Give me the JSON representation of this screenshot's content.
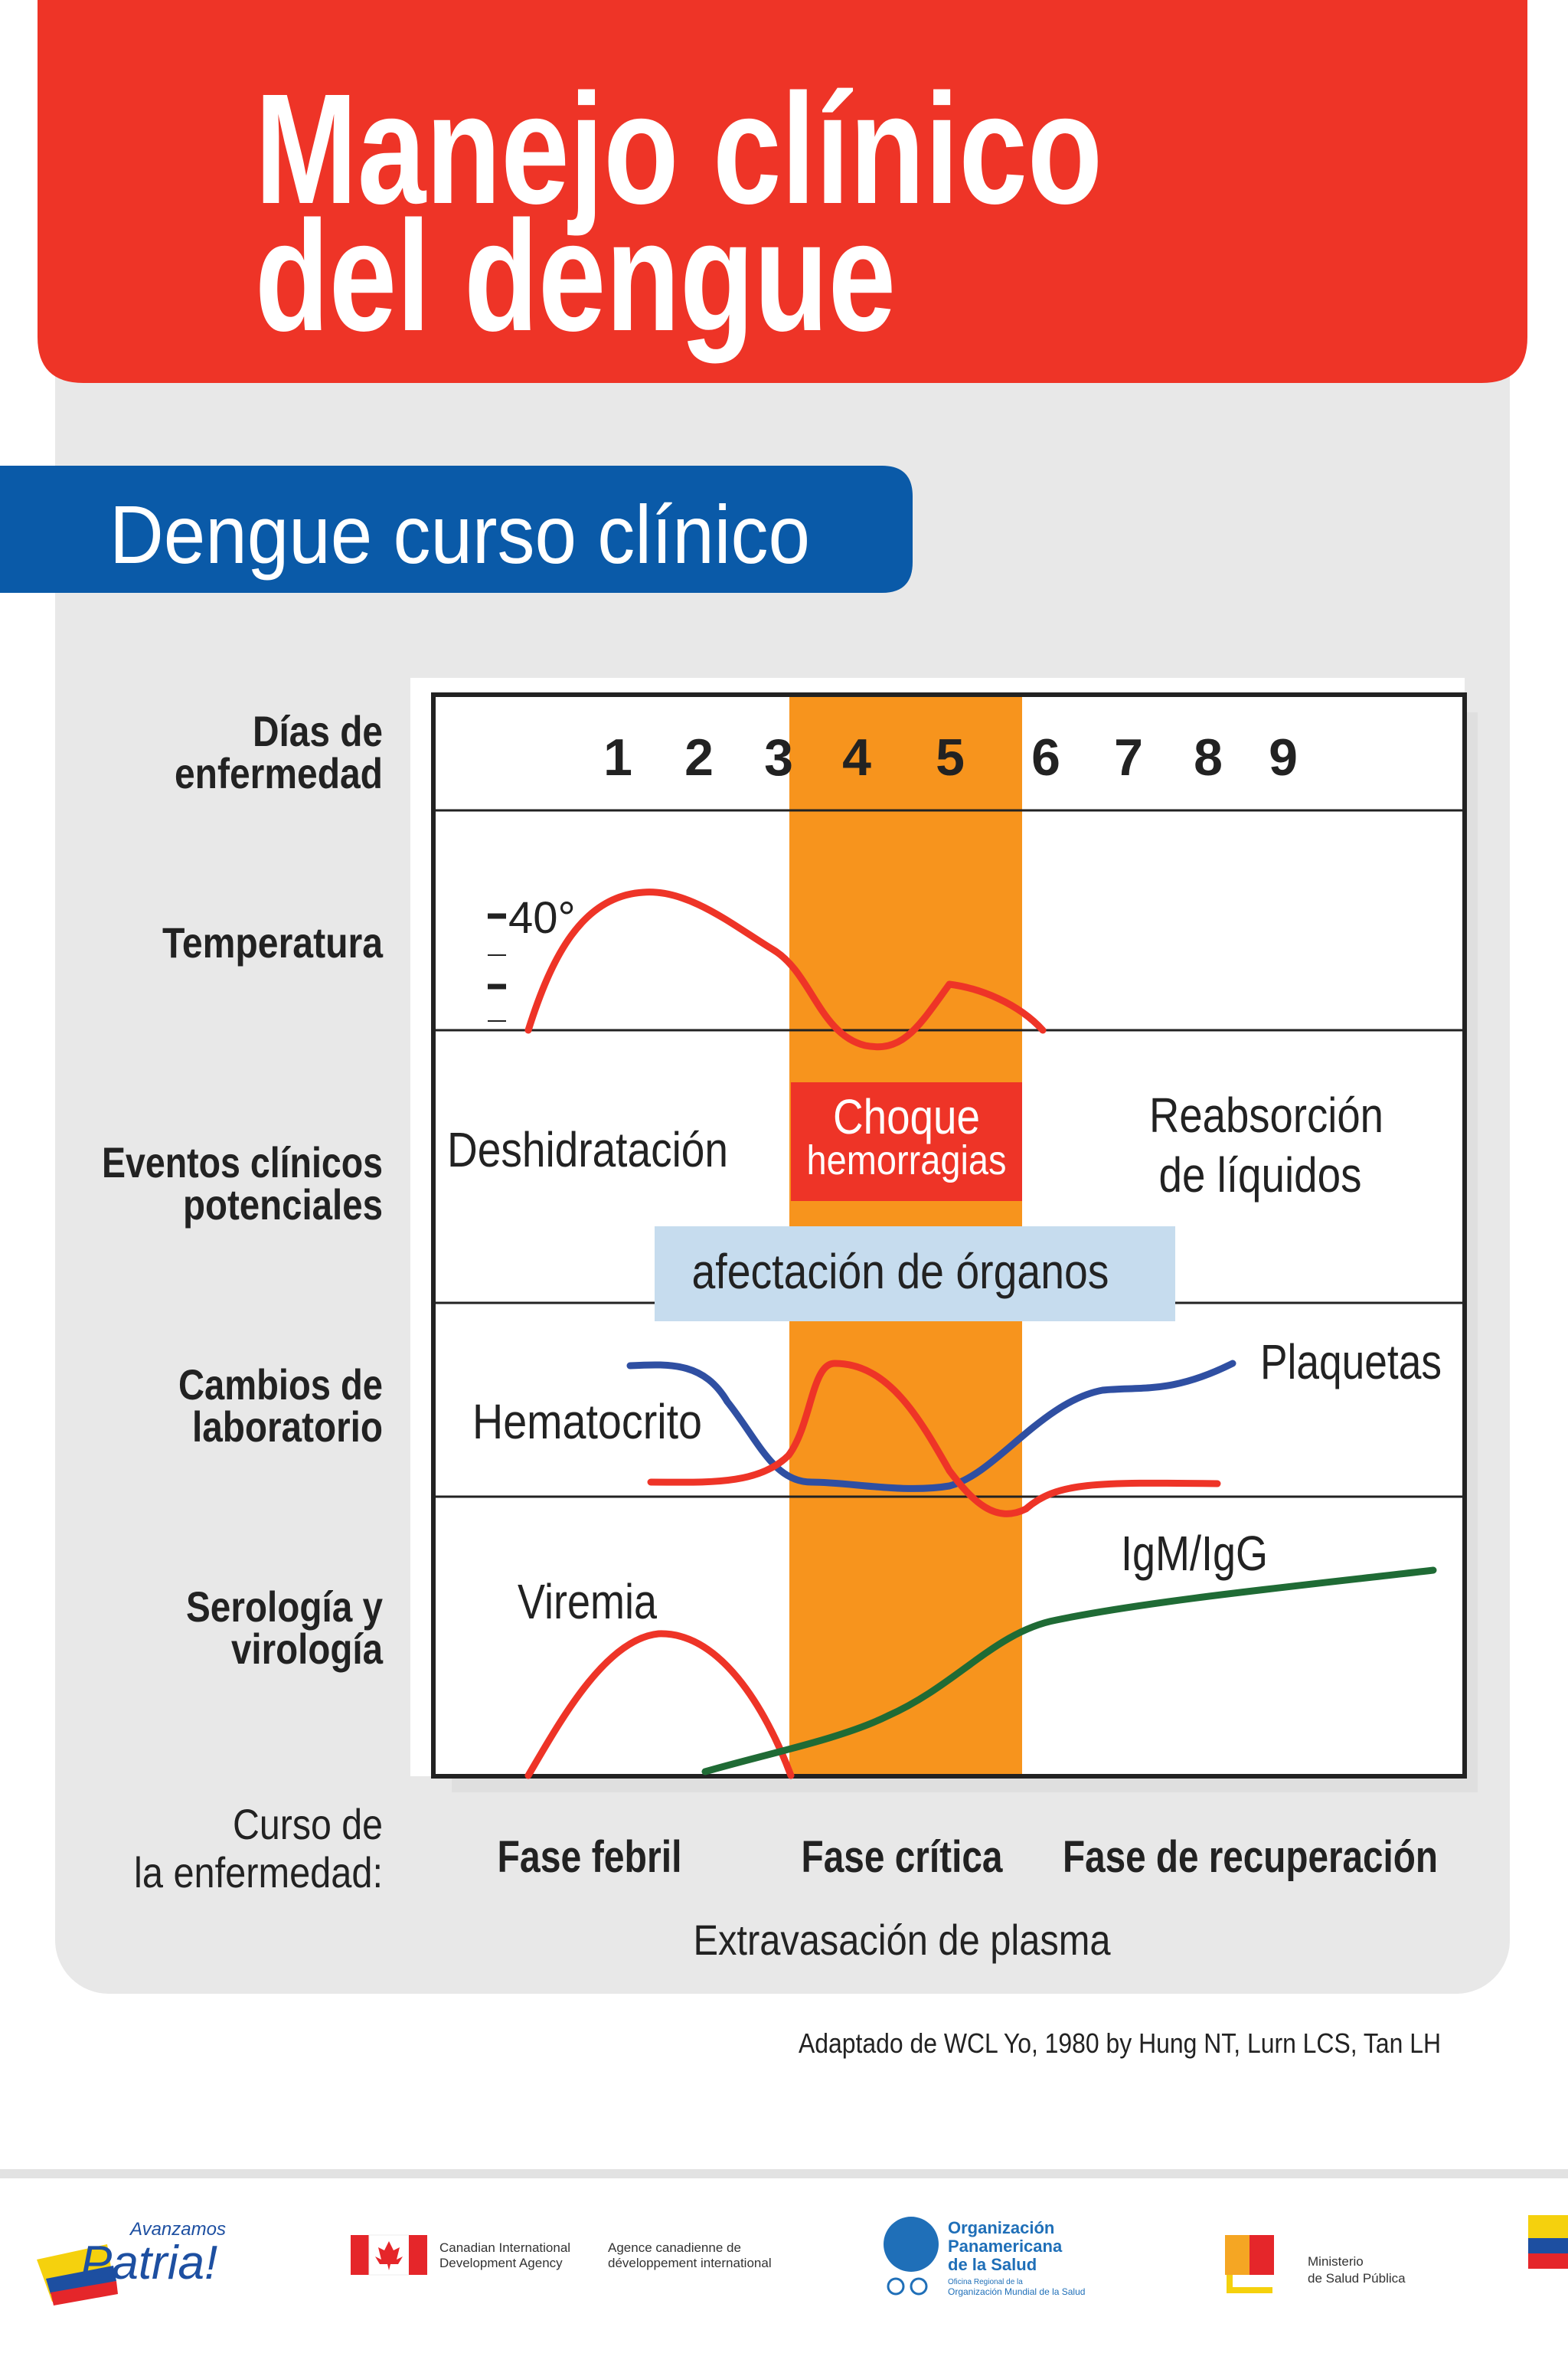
{
  "header": {
    "title_lines": [
      "Manejo clínico",
      "del dengue"
    ]
  },
  "section": {
    "title": "Dengue curso clínico"
  },
  "row_labels": [
    [
      "Días de",
      "enfermedad"
    ],
    [
      "Temperatura"
    ],
    [
      "Eventos clínicos",
      "potenciales"
    ],
    [
      "Cambios de",
      "laboratorio"
    ],
    [
      "Serología y",
      "virología"
    ]
  ],
  "days": [
    1,
    2,
    3,
    4,
    5,
    6,
    7,
    8,
    9
  ],
  "temperature": {
    "label": "40°"
  },
  "events": {
    "dehydration": "Deshidratación",
    "shock": [
      "Choque",
      "hemorragias"
    ],
    "reabsorption": [
      "Reabsorción",
      "de líquidos"
    ],
    "organs": "afectación de órganos"
  },
  "lab": {
    "platelets": "Plaquetas",
    "hematocrit": "Hematocrito"
  },
  "serology": {
    "viremia": "Viremia",
    "antibodies": "IgM/IgG"
  },
  "course": {
    "label": [
      "Curso de",
      "la enfermedad:"
    ],
    "phases": [
      "Fase febril",
      "Fase crítica",
      "Fase de recuperación"
    ],
    "leakage": "Extravasación de plasma"
  },
  "citation": "Adaptado de WCL Yo, 1980 by Hung NT,  Lurn LCS, Tan LH",
  "footer": {
    "patria": [
      "Avanzamos",
      "Patria!"
    ],
    "cida_en": [
      "Canadian International",
      "Development Agency"
    ],
    "cida_fr": [
      "Agence canadienne de",
      "développement international"
    ],
    "ops": [
      "Organización",
      "Panamericana",
      "de la Salud"
    ],
    "ops_sub": [
      "Oficina Regional de la",
      "Organización Mundial de la Salud"
    ],
    "msp": [
      "Ministerio",
      "de Salud Pública"
    ]
  }
}
